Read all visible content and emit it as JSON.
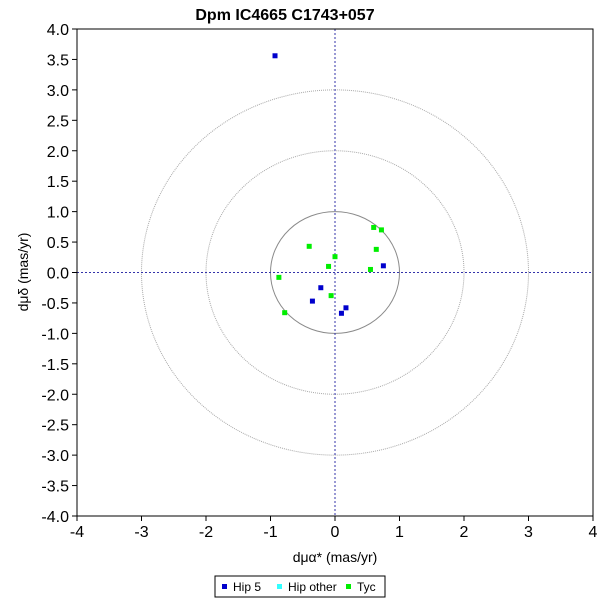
{
  "chart_data": {
    "type": "scatter",
    "title": "Dpm IC4665  C1743+057",
    "xlabel": "dμα* (mas/yr)",
    "ylabel": "dμδ (mas/yr)",
    "xlim": [
      -4,
      4
    ],
    "ylim": [
      -4,
      4
    ],
    "x_ticks": [
      "-4",
      "-3",
      "-2",
      "-1",
      "0",
      "1",
      "2",
      "3",
      "4"
    ],
    "y_ticks": [
      "4.0",
      "3.5",
      "3.0",
      "2.5",
      "2.0",
      "1.5",
      "1.0",
      "0.5",
      "0.0",
      "-0.5",
      "-1.0",
      "-1.5",
      "-2.0",
      "-2.5",
      "-3.0",
      "-3.5",
      "-4.0"
    ],
    "circle_radii": [
      1,
      2,
      3
    ],
    "grid": false,
    "legend_position": "bottom-center",
    "series": [
      {
        "name": "Hip 5",
        "color": "#0000cc",
        "points": [
          {
            "x": -0.93,
            "y": 3.56
          },
          {
            "x": -0.22,
            "y": -0.25
          },
          {
            "x": -0.35,
            "y": -0.47
          },
          {
            "x": 0.1,
            "y": -0.67
          },
          {
            "x": 0.17,
            "y": -0.58
          },
          {
            "x": 0.75,
            "y": 0.11
          }
        ]
      },
      {
        "name": "Hip other",
        "color": "#33ffff",
        "points": []
      },
      {
        "name": "Tyc",
        "color": "#00ee00",
        "points": [
          {
            "x": -0.4,
            "y": 0.43
          },
          {
            "x": -0.1,
            "y": 0.1
          },
          {
            "x": 0.0,
            "y": 0.26
          },
          {
            "x": -0.87,
            "y": -0.08
          },
          {
            "x": -0.78,
            "y": -0.66
          },
          {
            "x": -0.06,
            "y": -0.38
          },
          {
            "x": 0.6,
            "y": 0.74
          },
          {
            "x": 0.72,
            "y": 0.7
          },
          {
            "x": 0.64,
            "y": 0.38
          },
          {
            "x": 0.55,
            "y": 0.05
          }
        ]
      }
    ]
  }
}
